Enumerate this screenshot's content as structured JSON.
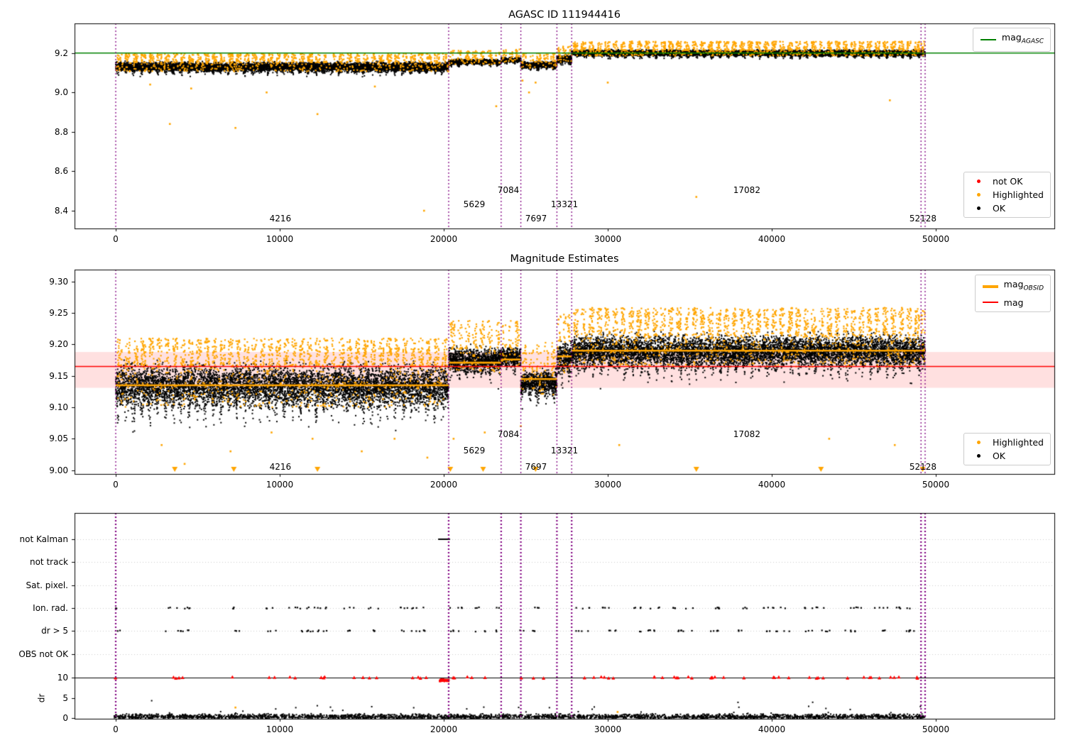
{
  "palette": {
    "ok": "#000000",
    "highlighted": "#FFA500",
    "not_ok": "#FF0000",
    "agasc_line": "#008000",
    "mag_line": "#FF0000",
    "obsid_line": "#FFA500",
    "divider": "#800080",
    "band": "rgba(255,0,0,0.12)",
    "grid": "#cccccc",
    "threshold": "#000000"
  },
  "chart_data": [
    {
      "id": "agasc-mag",
      "type": "scatter",
      "title": "AGASC ID 111944416",
      "xticks": [
        0,
        10000,
        20000,
        30000,
        40000,
        50000
      ],
      "xtick_labels": [
        "0",
        "10000",
        "20000",
        "30000",
        "40000",
        "50000"
      ],
      "yticks": [
        8.4,
        8.6,
        8.8,
        9.0,
        9.2
      ],
      "ytick_labels": [
        "8.4",
        "8.6",
        "8.8",
        "9.0",
        "9.2"
      ],
      "ylim": [
        8.31,
        9.35
      ],
      "xlim": [
        -2500,
        57200
      ],
      "ref_value": 9.2,
      "dividers": [
        0,
        20300,
        23500,
        24700,
        26900,
        27800,
        49100,
        49350
      ],
      "segments": [
        {
          "x0": 0,
          "x1": 20300,
          "mean": 9.13,
          "spread": 0.024,
          "orange_frac": 0.2
        },
        {
          "x0": 20300,
          "x1": 23500,
          "mean": 9.155,
          "spread": 0.013,
          "orange_frac": 0.15
        },
        {
          "x0": 23500,
          "x1": 24700,
          "mean": 9.165,
          "spread": 0.012,
          "orange_frac": 0.15
        },
        {
          "x0": 24700,
          "x1": 26900,
          "mean": 9.14,
          "spread": 0.016,
          "orange_frac": 0.15
        },
        {
          "x0": 26900,
          "x1": 27800,
          "mean": 9.17,
          "spread": 0.02,
          "orange_frac": 0.18
        },
        {
          "x0": 27800,
          "x1": 49100,
          "mean": 9.2,
          "spread": 0.015,
          "orange_frac": 0.22
        },
        {
          "x0": 49100,
          "x1": 49350,
          "mean": 9.2,
          "spread": 0.015,
          "orange_frac": 0.22
        }
      ],
      "outliers": [
        {
          "x": 3300,
          "y": 8.84
        },
        {
          "x": 7300,
          "y": 8.82
        },
        {
          "x": 12300,
          "y": 8.89
        },
        {
          "x": 18800,
          "y": 8.4
        },
        {
          "x": 23200,
          "y": 8.93
        },
        {
          "x": 25200,
          "y": 9.0
        },
        {
          "x": 25600,
          "y": 9.05
        },
        {
          "x": 24800,
          "y": 9.06
        },
        {
          "x": 30000,
          "y": 9.05
        },
        {
          "x": 35400,
          "y": 8.47
        },
        {
          "x": 47200,
          "y": 8.96
        },
        {
          "x": 4600,
          "y": 9.02
        },
        {
          "x": 2100,
          "y": 9.04
        },
        {
          "x": 9200,
          "y": 9.0
        },
        {
          "x": 15800,
          "y": 9.03
        }
      ],
      "obsid_labels": [
        {
          "text": "4216",
          "x": 10040,
          "row": 0
        },
        {
          "text": "5629",
          "x": 21860,
          "row": 1
        },
        {
          "text": "7084",
          "x": 23940,
          "row": 2
        },
        {
          "text": "7697",
          "x": 25630,
          "row": 0
        },
        {
          "text": "13321",
          "x": 27360,
          "row": 1
        },
        {
          "text": "17082",
          "x": 38480,
          "row": 2
        },
        {
          "text": "52128",
          "x": 49220,
          "row": 0
        }
      ],
      "label_rows": [
        8.362,
        8.434,
        8.506
      ],
      "legends": [
        {
          "entries": [
            {
              "marker": "line",
              "color": "#008000",
              "label": {
                "main": "mag",
                "sub": "AGASC"
              }
            }
          ]
        },
        {
          "entries": [
            {
              "marker": "dot",
              "color": "#FF0000",
              "label": {
                "main": "not OK"
              }
            },
            {
              "marker": "dot",
              "color": "#FFA500",
              "label": {
                "main": "Highlighted"
              }
            },
            {
              "marker": "dot",
              "color": "#000000",
              "label": {
                "main": "OK"
              }
            }
          ]
        }
      ]
    },
    {
      "id": "magnitude-estimates",
      "type": "scatter",
      "title": "Magnitude Estimates",
      "xticks": [
        0,
        10000,
        20000,
        30000,
        40000,
        50000
      ],
      "xtick_labels": [
        "0",
        "10000",
        "20000",
        "30000",
        "40000",
        "50000"
      ],
      "yticks": [
        9.0,
        9.05,
        9.1,
        9.15,
        9.2,
        9.25,
        9.3
      ],
      "ytick_labels": [
        "9.00",
        "9.05",
        "9.10",
        "9.15",
        "9.20",
        "9.25",
        "9.30"
      ],
      "ylim": [
        8.994,
        9.319
      ],
      "xlim": [
        -2500,
        57200
      ],
      "mag_line": 9.165,
      "band": [
        9.131,
        9.188
      ],
      "dividers": [
        0,
        20300,
        23500,
        24700,
        26900,
        27800,
        49100,
        49350
      ],
      "segments": [
        {
          "x0": 0,
          "x1": 20300,
          "mean": 9.134,
          "spread": 0.034,
          "orange_frac": 0.3,
          "obsid": 9.135
        },
        {
          "x0": 20300,
          "x1": 23500,
          "mean": 9.175,
          "spread": 0.02,
          "orange_frac": 0.22,
          "obsid": 9.171
        },
        {
          "x0": 23500,
          "x1": 24700,
          "mean": 9.18,
          "spread": 0.015,
          "orange_frac": 0.2,
          "obsid": 9.176
        },
        {
          "x0": 24700,
          "x1": 26900,
          "mean": 9.14,
          "spread": 0.02,
          "orange_frac": 0.2,
          "obsid": 9.145
        },
        {
          "x0": 26900,
          "x1": 27800,
          "mean": 9.18,
          "spread": 0.025,
          "orange_frac": 0.22,
          "obsid": 9.181
        },
        {
          "x0": 27800,
          "x1": 49100,
          "mean": 9.19,
          "spread": 0.026,
          "orange_frac": 0.3,
          "obsid": 9.19
        },
        {
          "x0": 49100,
          "x1": 49350,
          "mean": 9.19,
          "spread": 0.026,
          "orange_frac": 0.3,
          "obsid": 9.19
        }
      ],
      "outliers": [
        {
          "x": 2800,
          "y": 9.04
        },
        {
          "x": 4200,
          "y": 9.01
        },
        {
          "x": 7000,
          "y": 9.03
        },
        {
          "x": 12000,
          "y": 9.05
        },
        {
          "x": 15000,
          "y": 9.03
        },
        {
          "x": 19000,
          "y": 9.02
        },
        {
          "x": 20600,
          "y": 9.05
        },
        {
          "x": 22500,
          "y": 9.06
        },
        {
          "x": 24700,
          "y": 9.07
        },
        {
          "x": 30700,
          "y": 9.04
        },
        {
          "x": 43500,
          "y": 9.05
        },
        {
          "x": 47500,
          "y": 9.04
        },
        {
          "x": 9500,
          "y": 9.06
        },
        {
          "x": 17000,
          "y": 9.05
        }
      ],
      "clip_triangles_x": [
        3600,
        7200,
        12300,
        20400,
        22400,
        25600,
        35400,
        43000,
        49200
      ],
      "obsid_labels": [
        {
          "text": "4216",
          "x": 10040,
          "row": 0
        },
        {
          "text": "5629",
          "x": 21860,
          "row": 1
        },
        {
          "text": "7084",
          "x": 23940,
          "row": 2
        },
        {
          "text": "7697",
          "x": 25630,
          "row": 0
        },
        {
          "text": "13321",
          "x": 27360,
          "row": 1
        },
        {
          "text": "17082",
          "x": 38480,
          "row": 2
        },
        {
          "text": "52128",
          "x": 49220,
          "row": 0
        }
      ],
      "label_rows": [
        9.005,
        9.031,
        9.057
      ],
      "legends": [
        {
          "entries": [
            {
              "marker": "line-thick",
              "color": "#FFA500",
              "label": {
                "main": "mag",
                "sub": "OBSID"
              }
            },
            {
              "marker": "line",
              "color": "#FF0000",
              "label": {
                "main": "mag"
              }
            }
          ]
        },
        {
          "entries": [
            {
              "marker": "dot",
              "color": "#FFA500",
              "label": {
                "main": "Highlighted"
              }
            },
            {
              "marker": "dot",
              "color": "#000000",
              "label": {
                "main": "OK"
              }
            }
          ]
        }
      ]
    },
    {
      "id": "flags",
      "type": "scatter",
      "categories": [
        "not Kalman",
        "not track",
        "Sat. pixel.",
        "Ion. rad.",
        "dr > 5",
        "OBS not OK"
      ],
      "dr_label": "dr",
      "dr_ticks": [
        0,
        5,
        10
      ],
      "dr_tick_labels": [
        "0",
        "5",
        "10"
      ],
      "dr_threshold": 10,
      "xticks": [
        0,
        10000,
        20000,
        30000,
        40000,
        50000
      ],
      "xtick_labels": [
        "0",
        "10000",
        "20000",
        "30000",
        "40000",
        "50000"
      ],
      "dividers": [
        0,
        20300,
        23500,
        24700,
        26900,
        27800,
        49100,
        49350
      ],
      "not_kalman_range": [
        19750,
        20320
      ],
      "ion_rad_ranges": [
        [
          -100,
          300
        ],
        [
          2900,
          4600
        ],
        [
          6900,
          7600
        ],
        [
          9000,
          9800
        ],
        [
          10400,
          12900
        ],
        [
          13900,
          14600
        ],
        [
          15400,
          16100
        ],
        [
          17200,
          19000
        ],
        [
          20300,
          21200
        ],
        [
          21900,
          22600
        ],
        [
          23200,
          23500
        ],
        [
          25400,
          26100
        ],
        [
          28000,
          29000
        ],
        [
          29600,
          30600
        ],
        [
          31500,
          33200
        ],
        [
          33800,
          35200
        ],
        [
          36100,
          37200
        ],
        [
          37800,
          38600
        ],
        [
          39500,
          41100
        ],
        [
          42000,
          43600
        ],
        [
          44400,
          45600
        ],
        [
          46200,
          47100
        ],
        [
          47600,
          48900
        ]
      ],
      "dr5_ranges": [
        [
          -100,
          300
        ],
        [
          2900,
          4600
        ],
        [
          6900,
          7600
        ],
        [
          9000,
          9800
        ],
        [
          10400,
          12900
        ],
        [
          13900,
          14600
        ],
        [
          15400,
          16100
        ],
        [
          17200,
          19000
        ],
        [
          20300,
          21200
        ],
        [
          21900,
          22600
        ],
        [
          23200,
          23500
        ],
        [
          24600,
          24900
        ],
        [
          25400,
          26100
        ],
        [
          28000,
          29000
        ],
        [
          29600,
          30600
        ],
        [
          31500,
          33200
        ],
        [
          33800,
          35200
        ],
        [
          36100,
          37200
        ],
        [
          37800,
          38600
        ],
        [
          39500,
          41100
        ],
        [
          42000,
          43600
        ],
        [
          44400,
          45600
        ],
        [
          46200,
          47100
        ],
        [
          47600,
          48900
        ]
      ],
      "red_ranges": [
        [
          -100,
          300
        ],
        [
          2900,
          4500
        ],
        [
          7000,
          7600
        ],
        [
          9000,
          9700
        ],
        [
          10500,
          12800
        ],
        [
          14000,
          16000
        ],
        [
          17300,
          19000
        ],
        [
          20400,
          22600
        ],
        [
          24700,
          26100
        ],
        [
          28000,
          30600
        ],
        [
          31500,
          35200
        ],
        [
          36100,
          38600
        ],
        [
          39500,
          41100
        ],
        [
          42000,
          43600
        ],
        [
          44400,
          48900
        ]
      ],
      "red_dense_range": [
        19750,
        20320
      ],
      "dr_orange_points": [
        {
          "x": 7300,
          "v": 2.6
        },
        {
          "x": 30600,
          "v": 1.5
        }
      ],
      "dr_black": {
        "count": 2600,
        "xmin": -100,
        "xmax": 49350,
        "base": 0.55,
        "spike_frac": 0.02,
        "spike_max": 3.6
      }
    }
  ]
}
